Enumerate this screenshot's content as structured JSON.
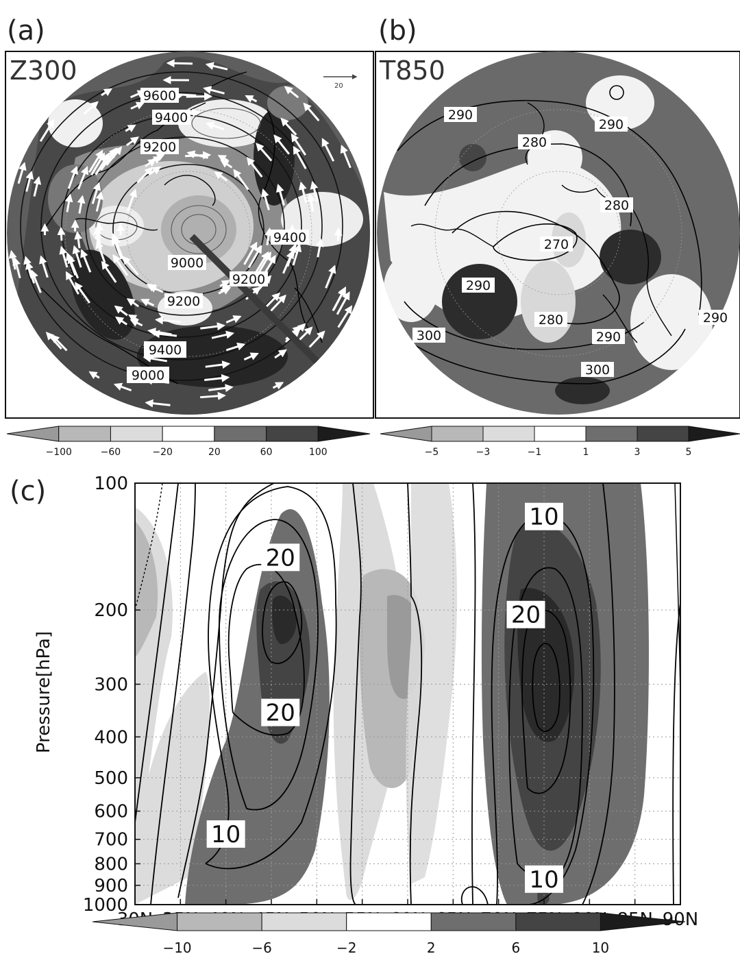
{
  "chart_data": [
    {
      "panel": "(a)",
      "type": "heatmap",
      "title": "Z300",
      "projection": "north-polar-stereographic",
      "contour_labels": [
        "9600",
        "9400",
        "9200",
        "9400",
        "9000",
        "9200",
        "9400",
        "9200",
        "9400",
        "9000"
      ],
      "vector_reference": "20",
      "colorbar": {
        "ticks": [
          -100,
          -60,
          -20,
          20,
          60,
          100
        ],
        "colors": [
          "#9a9a9a",
          "#b8b8b8",
          "#dcdcdc",
          "#ffffff",
          "#6e6e6e",
          "#444444",
          "#1c1c1c"
        ]
      }
    },
    {
      "panel": "(b)",
      "type": "heatmap",
      "title": "T850",
      "projection": "north-polar-stereographic",
      "contour_labels": [
        "290",
        "290",
        "280",
        "280",
        "270",
        "290",
        "280",
        "290",
        "290",
        "300",
        "300"
      ],
      "colorbar": {
        "ticks": [
          -5,
          -3,
          -1,
          1,
          3,
          5
        ],
        "colors": [
          "#9a9a9a",
          "#b8b8b8",
          "#dcdcdc",
          "#ffffff",
          "#6e6e6e",
          "#444444",
          "#1c1c1c"
        ]
      }
    },
    {
      "panel": "(c)",
      "type": "heatmap",
      "title": "",
      "xlabel": "",
      "ylabel": "Pressure[hPa]",
      "x_ticks": [
        "30N",
        "35N",
        "40N",
        "45N",
        "50N",
        "55N",
        "60N",
        "65N",
        "70N",
        "75N",
        "80N",
        "85N",
        "90N"
      ],
      "x_range": [
        30,
        90
      ],
      "y_ticks": [
        100,
        200,
        300,
        400,
        500,
        600,
        700,
        800,
        900,
        1000
      ],
      "y_range": [
        1000,
        100
      ],
      "y_scale": "log",
      "grid": true,
      "contour_labels": [
        {
          "text": "20",
          "lat": 46,
          "p": 150
        },
        {
          "text": "20",
          "lat": 46,
          "p": 350
        },
        {
          "text": "10",
          "lat": 40,
          "p": 680
        },
        {
          "text": "10",
          "lat": 75,
          "p": 120
        },
        {
          "text": "20",
          "lat": 73,
          "p": 205
        },
        {
          "text": "10",
          "lat": 75,
          "p": 870
        }
      ],
      "colorbar": {
        "ticks": [
          -10,
          -6,
          -2,
          2,
          6,
          10
        ],
        "colors": [
          "#9a9a9a",
          "#b8b8b8",
          "#dcdcdc",
          "#ffffff",
          "#6e6e6e",
          "#444444",
          "#1c1c1c"
        ]
      }
    }
  ]
}
